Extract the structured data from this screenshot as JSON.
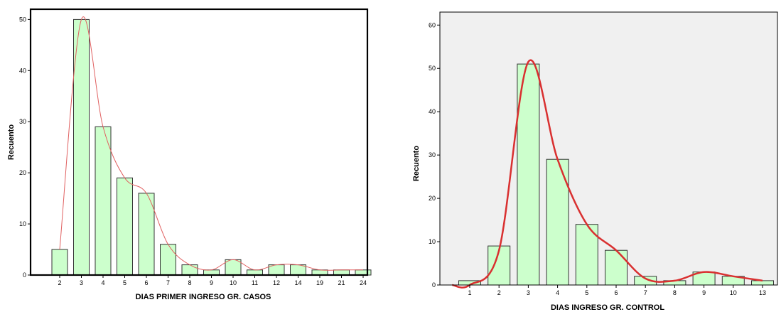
{
  "chart_data": [
    {
      "type": "bar",
      "xlabel": "DIAS PRIMER INGRESO GR. CASOS",
      "ylabel": "Recuento",
      "categories": [
        "2",
        "3",
        "4",
        "5",
        "6",
        "7",
        "8",
        "9",
        "10",
        "11",
        "12",
        "14",
        "19",
        "21",
        "24"
      ],
      "values": [
        5,
        50,
        29,
        19,
        16,
        6,
        2,
        1,
        3,
        1,
        2,
        2,
        1,
        1,
        1
      ],
      "yticks": [
        0,
        10,
        20,
        30,
        40,
        50
      ],
      "ylim": [
        0,
        52
      ],
      "frame": "bold",
      "plot_background": "#ffffff",
      "bar_color": "#ccffcc",
      "curve": {
        "type": "density-line",
        "color": "#e06060",
        "width": "thin",
        "values": [
          5,
          50,
          29,
          19,
          16,
          6,
          2,
          1,
          3,
          1,
          2,
          2,
          1,
          1,
          1
        ]
      },
      "grid": false
    },
    {
      "type": "bar",
      "xlabel": "DIAS INGRESO GR. CONTROL",
      "ylabel": "Recuento",
      "categories": [
        "1",
        "2",
        "3",
        "4",
        "5",
        "6",
        "7",
        "8",
        "9",
        "10",
        "13"
      ],
      "values": [
        1,
        9,
        51,
        29,
        14,
        8,
        2,
        1,
        3,
        2,
        1
      ],
      "yticks": [
        0,
        10,
        20,
        30,
        40,
        50,
        60
      ],
      "ylim": [
        0,
        63
      ],
      "frame": "thin",
      "plot_background": "#f0f0f0",
      "bar_color": "#ccffcc",
      "curve": {
        "type": "density-line",
        "color": "#d93030",
        "width": "thick",
        "values": [
          0,
          8,
          51.5,
          29,
          14,
          8,
          1.5,
          1,
          3,
          2,
          1
        ]
      },
      "grid": false
    }
  ]
}
